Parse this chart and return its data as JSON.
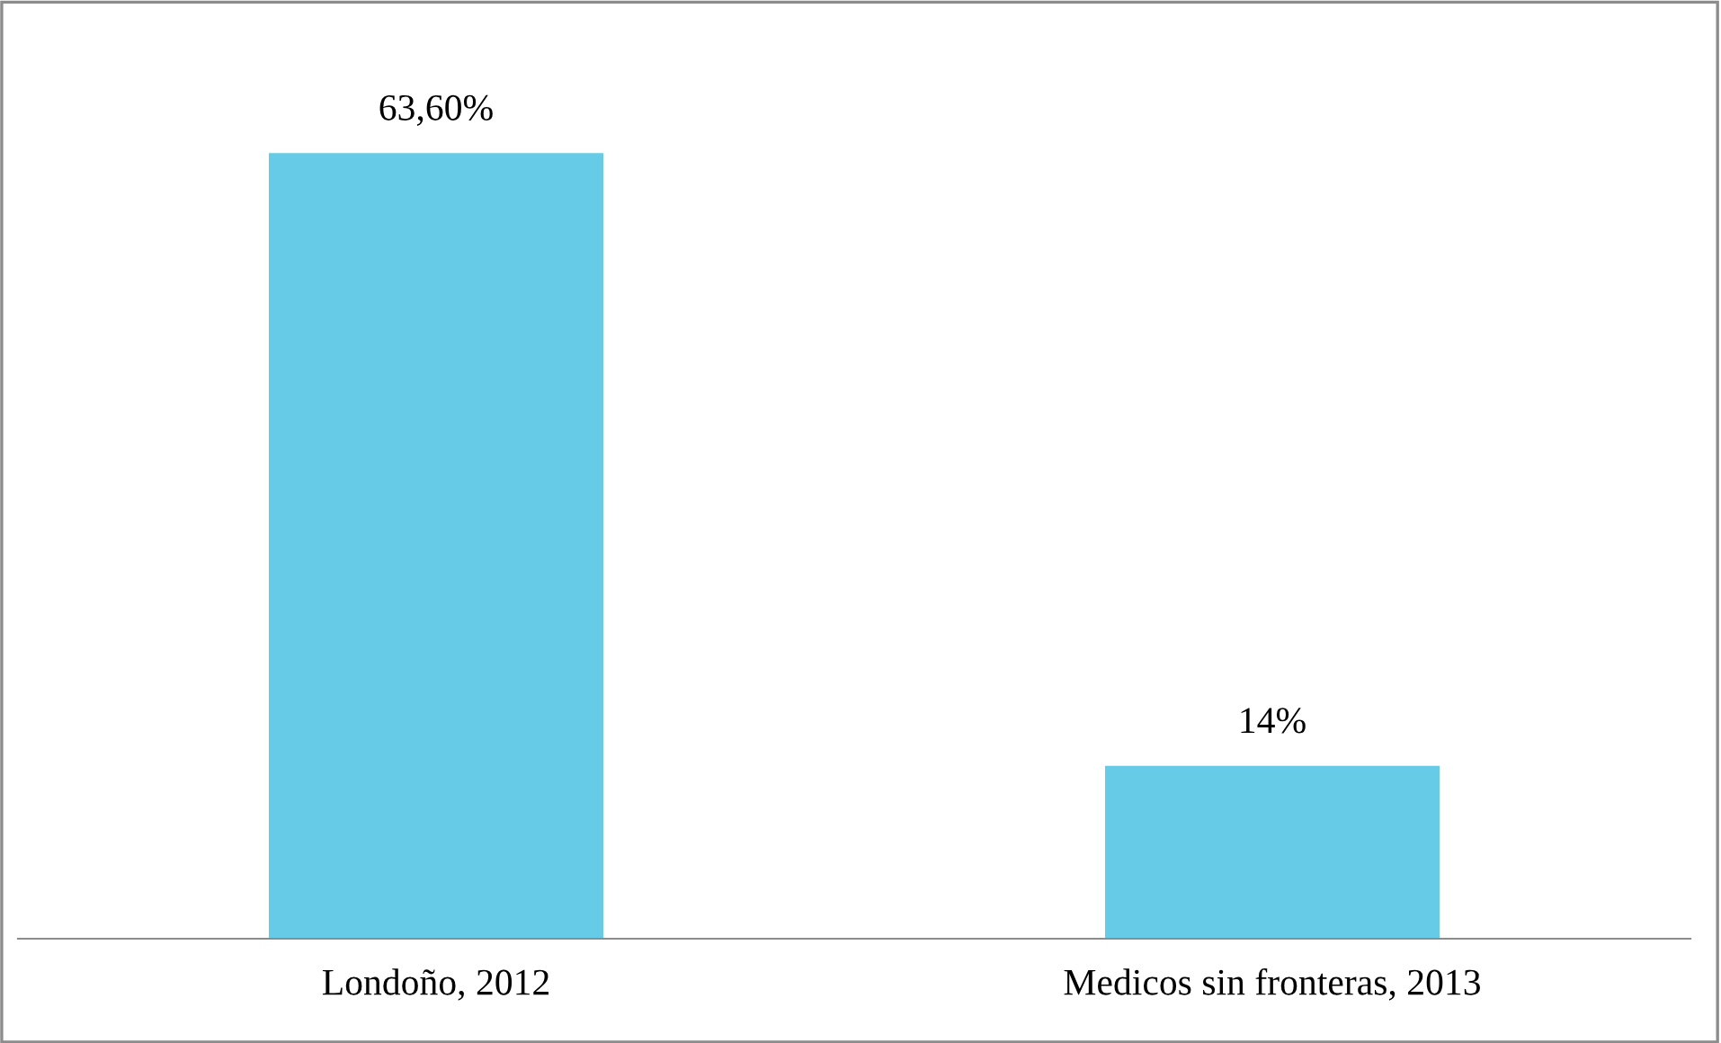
{
  "chart_data": {
    "type": "bar",
    "categories": [
      "Londoño, 2012",
      "Medicos sin fronteras, 2013"
    ],
    "values": [
      63.6,
      14
    ],
    "value_labels": [
      "63,60%",
      "14%"
    ],
    "color": "#66cbe6",
    "grid": false,
    "legend": false
  }
}
